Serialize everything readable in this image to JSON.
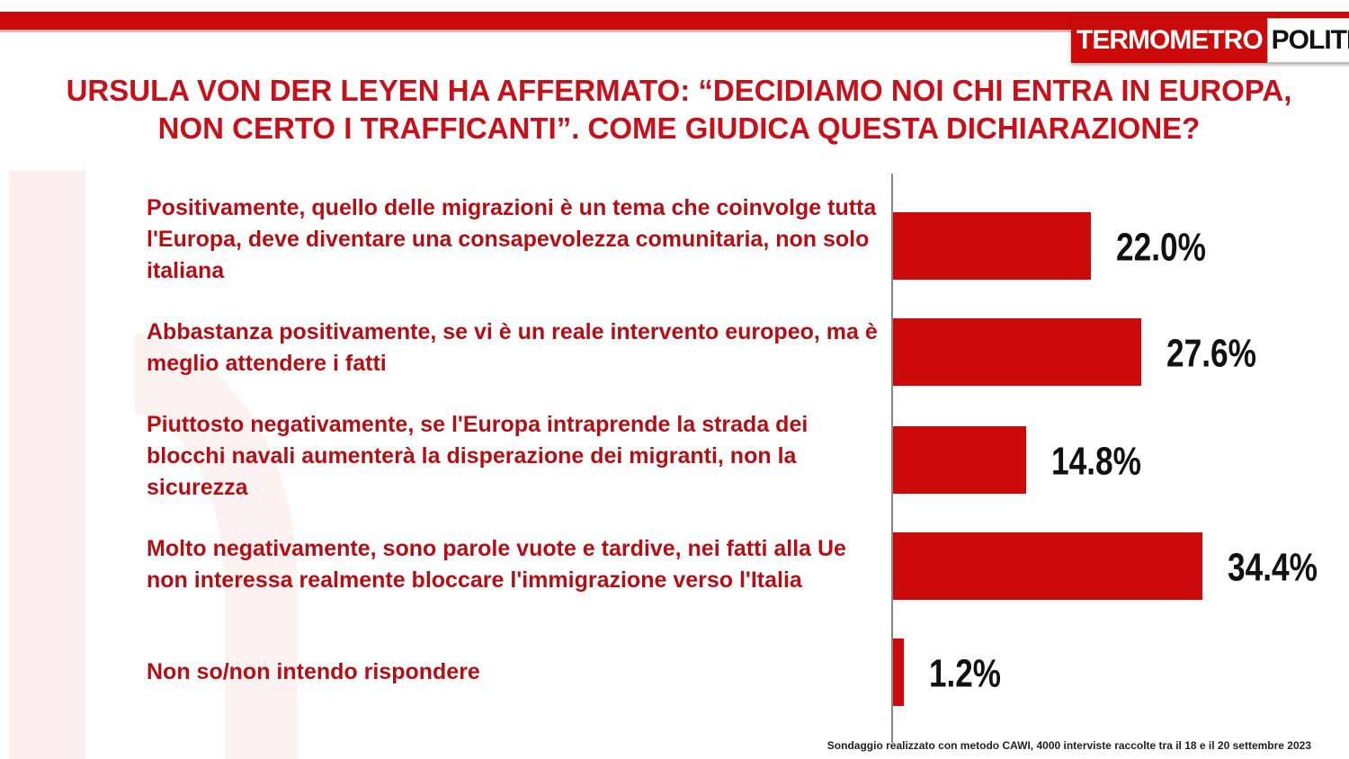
{
  "header": {
    "logo_left": "TERMOMETRO",
    "logo_right": "POLITICO"
  },
  "title": "Ursula von der Leyen ha affermato: “Decidiamo noi chi entra in Europa, non certo i trafficanti”. Come giudica questa dichiarazione?",
  "footnote": "Sondaggio realizzato con metodo CAWI, 4000 interviste raccolte tra il 18 e il 20 settembre 2023",
  "colors": {
    "accent": "#cc0a0a",
    "bar": "#cc0a0a",
    "title": "#c8101a",
    "label": "#b30f14"
  },
  "chart_data": {
    "type": "bar",
    "orientation": "horizontal",
    "categories": [
      "Positivamente, quello delle migrazioni è un tema che coinvolge tutta l'Europa, deve diventare una consapevolezza comunitaria, non solo italiana",
      "Abbastanza positivamente, se vi è un reale intervento europeo, ma è meglio attendere i fatti",
      "Piuttosto negativamente, se l'Europa intraprende la strada dei blocchi navali aumenterà  la disperazione dei migranti, non la sicurezza",
      "Molto negativamente, sono parole vuote e tardive, nei fatti alla Ue non interessa realmente bloccare l'immigrazione verso l'Italia",
      "Non so/non intendo rispondere"
    ],
    "values": [
      22.0,
      27.6,
      14.8,
      34.4,
      1.2
    ],
    "value_labels": [
      "22.0%",
      "27.6%",
      "14.8%",
      "34.4%",
      "1.2%"
    ],
    "unit": "%",
    "xlim": [
      0,
      50
    ],
    "grid": false,
    "legend": "none"
  }
}
